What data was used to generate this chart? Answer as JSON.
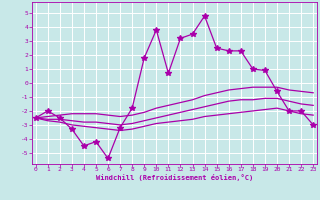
{
  "xlabel": "Windchill (Refroidissement éolien,°C)",
  "background_color": "#c8e8e8",
  "grid_color": "#ffffff",
  "line_color": "#aa00aa",
  "x_ticks": [
    0,
    1,
    2,
    3,
    4,
    5,
    6,
    7,
    8,
    9,
    10,
    11,
    12,
    13,
    14,
    15,
    16,
    17,
    18,
    19,
    20,
    21,
    22,
    23
  ],
  "y_ticks": [
    -5,
    -4,
    -3,
    -2,
    -1,
    0,
    1,
    2,
    3,
    4,
    5
  ],
  "xlim": [
    -0.3,
    23.3
  ],
  "ylim": [
    -5.8,
    5.8
  ],
  "series": [
    {
      "x": [
        0,
        1,
        2,
        3,
        4,
        5,
        6,
        7,
        8,
        9,
        10,
        11,
        12,
        13,
        14,
        15,
        16,
        17,
        18,
        19,
        20,
        21,
        22,
        23
      ],
      "y": [
        -2.5,
        -2.0,
        -2.5,
        -3.3,
        -4.5,
        -4.2,
        -5.4,
        -3.2,
        -1.8,
        1.8,
        3.8,
        0.7,
        3.2,
        3.5,
        4.8,
        2.5,
        2.3,
        2.3,
        1.0,
        0.9,
        -0.6,
        -2.0,
        -2.0,
        -3.0
      ],
      "marker": "*",
      "markersize": 4,
      "linewidth": 0.9
    },
    {
      "x": [
        0,
        1,
        2,
        3,
        4,
        5,
        6,
        7,
        8,
        9,
        10,
        11,
        12,
        13,
        14,
        15,
        16,
        17,
        18,
        19,
        20,
        21,
        22,
        23
      ],
      "y": [
        -2.5,
        -2.4,
        -2.3,
        -2.2,
        -2.2,
        -2.2,
        -2.3,
        -2.4,
        -2.3,
        -2.1,
        -1.8,
        -1.6,
        -1.4,
        -1.2,
        -0.9,
        -0.7,
        -0.5,
        -0.4,
        -0.3,
        -0.3,
        -0.3,
        -0.5,
        -0.6,
        -0.7
      ],
      "marker": null,
      "markersize": 0,
      "linewidth": 0.9
    },
    {
      "x": [
        0,
        1,
        2,
        3,
        4,
        5,
        6,
        7,
        8,
        9,
        10,
        11,
        12,
        13,
        14,
        15,
        16,
        17,
        18,
        19,
        20,
        21,
        22,
        23
      ],
      "y": [
        -2.5,
        -2.6,
        -2.6,
        -2.7,
        -2.8,
        -2.8,
        -2.9,
        -3.0,
        -2.9,
        -2.7,
        -2.5,
        -2.3,
        -2.1,
        -1.9,
        -1.7,
        -1.5,
        -1.3,
        -1.2,
        -1.2,
        -1.1,
        -1.1,
        -1.3,
        -1.5,
        -1.6
      ],
      "marker": null,
      "markersize": 0,
      "linewidth": 0.9
    },
    {
      "x": [
        0,
        1,
        2,
        3,
        4,
        5,
        6,
        7,
        8,
        9,
        10,
        11,
        12,
        13,
        14,
        15,
        16,
        17,
        18,
        19,
        20,
        21,
        22,
        23
      ],
      "y": [
        -2.5,
        -2.7,
        -2.8,
        -3.0,
        -3.1,
        -3.2,
        -3.3,
        -3.4,
        -3.3,
        -3.1,
        -2.9,
        -2.8,
        -2.7,
        -2.6,
        -2.4,
        -2.3,
        -2.2,
        -2.1,
        -2.0,
        -1.9,
        -1.8,
        -2.0,
        -2.2,
        -2.3
      ],
      "marker": null,
      "markersize": 0,
      "linewidth": 0.9
    }
  ]
}
